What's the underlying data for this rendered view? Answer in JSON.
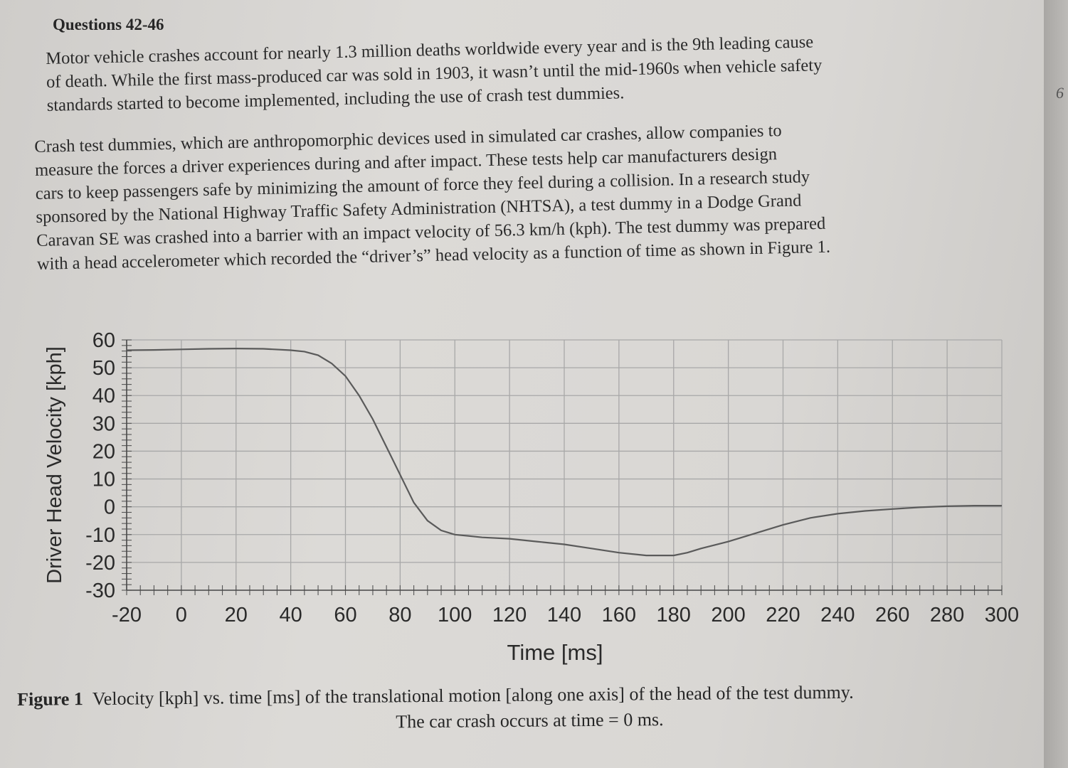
{
  "heading": "Questions 42-46",
  "edge_mark": "6",
  "paragraph1": [
    "Motor vehicle crashes account for nearly 1.3 million deaths worldwide every year and is the 9th leading cause",
    "of death. While the first mass-produced car was sold in 1903, it wasn’t until the mid-1960s when vehicle safety",
    "standards started to become implemented, including the use of crash test dummies."
  ],
  "paragraph2": [
    "Crash test dummies, which are anthropomorphic devices used in simulated car crashes, allow companies to",
    "measure the forces a driver experiences during and after impact. These tests help car manufacturers design",
    "cars to keep passengers safe by minimizing the amount of force they feel during a collision. In a research study",
    "sponsored by the National Highway Traffic Safety Administration (NHTSA), a test dummy in a Dodge Grand",
    "Caravan SE was crashed into a barrier with an impact velocity of 56.3 km/h (kph). The test dummy was prepared",
    "with a head accelerometer which recorded the “driver’s” head velocity as a function of time as shown in Figure 1."
  ],
  "caption": {
    "label": "Figure 1",
    "line1": "Velocity [kph] vs. time [ms] of the translational motion [along one axis] of the head of the test dummy.",
    "line2": "The car crash occurs at time = 0 ms."
  },
  "colors": {
    "line": "#5a5a5a",
    "grid": "#a8a8a8",
    "text": "#2a2a2a"
  },
  "chart_data": {
    "type": "line",
    "xlabel": "Time [ms]",
    "ylabel": "Driver Head Velocity [kph]",
    "xlim": [
      -20,
      300
    ],
    "ylim": [
      -30,
      60
    ],
    "xticks": [
      -20,
      0,
      20,
      40,
      60,
      80,
      100,
      120,
      140,
      160,
      180,
      200,
      220,
      240,
      260,
      280,
      300
    ],
    "yticks": [
      60,
      50,
      40,
      30,
      20,
      10,
      0,
      -10,
      -20,
      -30
    ],
    "grid": true,
    "series": [
      {
        "x": [
          -20,
          -10,
          0,
          10,
          20,
          30,
          40,
          45,
          50,
          55,
          60,
          65,
          70,
          75,
          80,
          85,
          90,
          95,
          100,
          105,
          110,
          120,
          130,
          140,
          150,
          160,
          170,
          180,
          185,
          190,
          200,
          210,
          220,
          230,
          240,
          250,
          260,
          270,
          280,
          290,
          300
        ],
        "y": [
          56.3,
          56.4,
          56.6,
          56.8,
          56.9,
          56.8,
          56.3,
          55.8,
          54.5,
          51.5,
          47,
          40,
          31.5,
          21.5,
          11.5,
          1.5,
          -5,
          -8.5,
          -10,
          -10.5,
          -11,
          -11.5,
          -12.5,
          -13.5,
          -15,
          -16.5,
          -17.5,
          -17.5,
          -16.5,
          -15,
          -12.5,
          -9.5,
          -6.5,
          -4,
          -2.5,
          -1.5,
          -0.8,
          -0.2,
          0.2,
          0.4,
          0.4
        ]
      }
    ]
  }
}
